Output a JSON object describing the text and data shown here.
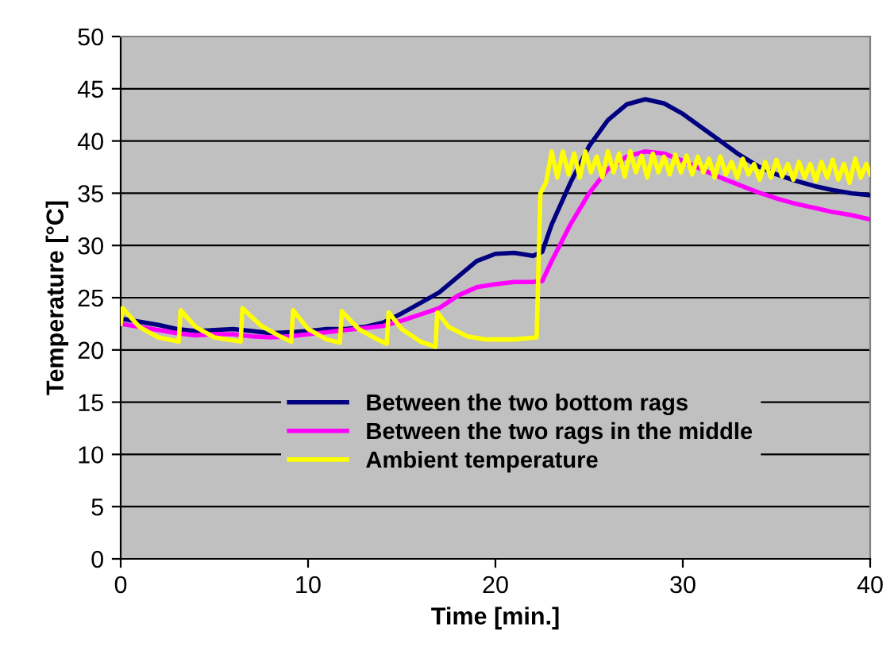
{
  "chart_data": {
    "type": "line",
    "xlabel": "Time [min.]",
    "ylabel": "Temperature [°C]",
    "xlim": [
      0,
      40
    ],
    "xticks": [
      0,
      10,
      20,
      30,
      40
    ],
    "ylim": [
      0,
      50
    ],
    "yticks": [
      0,
      5,
      10,
      15,
      20,
      25,
      30,
      35,
      40,
      45,
      50
    ],
    "grid": "y",
    "legend": "bottom",
    "marker": "none",
    "line_style": "solid",
    "series": [
      {
        "name": "Between the two bottom rags",
        "color": "#000080",
        "x": [
          0,
          1,
          2,
          3,
          4,
          5,
          6,
          7,
          8,
          9,
          10,
          11,
          12,
          13,
          14,
          15,
          16,
          17,
          18,
          19,
          20,
          21,
          22,
          22.5,
          23,
          24,
          25,
          26,
          27,
          28,
          29,
          30,
          31,
          32,
          33,
          34,
          35,
          36,
          37,
          38,
          39,
          40
        ],
        "values": [
          23,
          22.7,
          22.4,
          22,
          21.8,
          21.9,
          22,
          21.8,
          21.6,
          21.7,
          21.8,
          22,
          22,
          22.2,
          22.6,
          23.5,
          24.5,
          25.5,
          27,
          28.5,
          29.2,
          29.3,
          29,
          29.4,
          32,
          36,
          39.5,
          42,
          43.5,
          44,
          43.6,
          42.6,
          41.3,
          40,
          38.7,
          37.6,
          36.8,
          36.2,
          35.7,
          35.3,
          35,
          34.8
        ]
      },
      {
        "name": "Between the two rags in the middle",
        "color": "#ff00ff",
        "x": [
          0,
          1,
          2,
          3,
          4,
          5,
          6,
          7,
          8,
          9,
          10,
          11,
          12,
          13,
          14,
          15,
          16,
          17,
          18,
          19,
          20,
          21,
          22,
          22.5,
          23,
          24,
          25,
          26,
          27,
          28,
          29,
          30,
          31,
          32,
          33,
          34,
          35,
          36,
          37,
          38,
          39,
          40
        ],
        "values": [
          22.5,
          22.2,
          21.9,
          21.6,
          21.4,
          21.5,
          21.5,
          21.3,
          21.2,
          21.3,
          21.5,
          21.7,
          21.9,
          22.1,
          22.3,
          22.8,
          23.4,
          24,
          25.2,
          26,
          26.3,
          26.5,
          26.5,
          26.6,
          28.5,
          32,
          35,
          37.3,
          38.5,
          39,
          38.8,
          38.1,
          37.3,
          36.5,
          35.8,
          35.1,
          34.5,
          34,
          33.6,
          33.2,
          32.9,
          32.5
        ]
      },
      {
        "name": "Ambient temperature",
        "color": "#ffff00",
        "x": [
          0,
          0.1,
          1,
          2,
          3.1,
          3.2,
          4,
          5,
          6.4,
          6.5,
          7.5,
          8.5,
          9.1,
          9.2,
          10,
          11,
          11.7,
          11.8,
          12.7,
          13.7,
          14.2,
          14.3,
          15,
          16,
          16.8,
          16.9,
          17.5,
          18.5,
          19.5,
          21,
          22.2,
          22.4,
          22.7,
          23,
          23.3,
          23.6,
          23.9,
          24.2,
          24.5,
          24.8,
          25.1,
          25.4,
          25.7,
          26,
          26.3,
          26.6,
          26.9,
          27.2,
          27.5,
          27.8,
          28.1,
          28.4,
          28.7,
          29,
          29.3,
          29.6,
          29.9,
          30.2,
          30.5,
          30.8,
          31.1,
          31.4,
          31.7,
          32,
          32.3,
          32.6,
          32.9,
          33.2,
          33.5,
          33.8,
          34.1,
          34.4,
          34.7,
          35,
          35.3,
          35.6,
          35.9,
          36.2,
          36.5,
          36.8,
          37.1,
          37.4,
          37.7,
          38,
          38.3,
          38.6,
          38.9,
          39.2,
          39.5,
          39.8,
          40
        ],
        "values": [
          22.5,
          24,
          22.2,
          21.2,
          20.8,
          23.8,
          22.2,
          21.2,
          20.8,
          24,
          22.3,
          21.3,
          20.8,
          23.8,
          22,
          21,
          20.7,
          23.7,
          22,
          21,
          20.6,
          23.6,
          22,
          20.8,
          20.3,
          23.6,
          22.2,
          21.3,
          21,
          21,
          21.2,
          35,
          36,
          39,
          36.5,
          39,
          36.8,
          38.8,
          36.5,
          39,
          37,
          38.5,
          36.5,
          39,
          37,
          38.8,
          36.6,
          39,
          37,
          38.6,
          36.5,
          38.8,
          37,
          38.5,
          36.8,
          38.7,
          37,
          38.6,
          36.8,
          38.5,
          37,
          38.3,
          36.5,
          38.5,
          36.8,
          38,
          36.5,
          38.3,
          36.8,
          37.8,
          36.3,
          38,
          36.5,
          38.2,
          36.6,
          37.8,
          36.3,
          38,
          36.5,
          37.8,
          36.2,
          38,
          36.5,
          38.2,
          36.3,
          37.8,
          36,
          38.3,
          36.5,
          37.8,
          36.8
        ]
      }
    ]
  }
}
